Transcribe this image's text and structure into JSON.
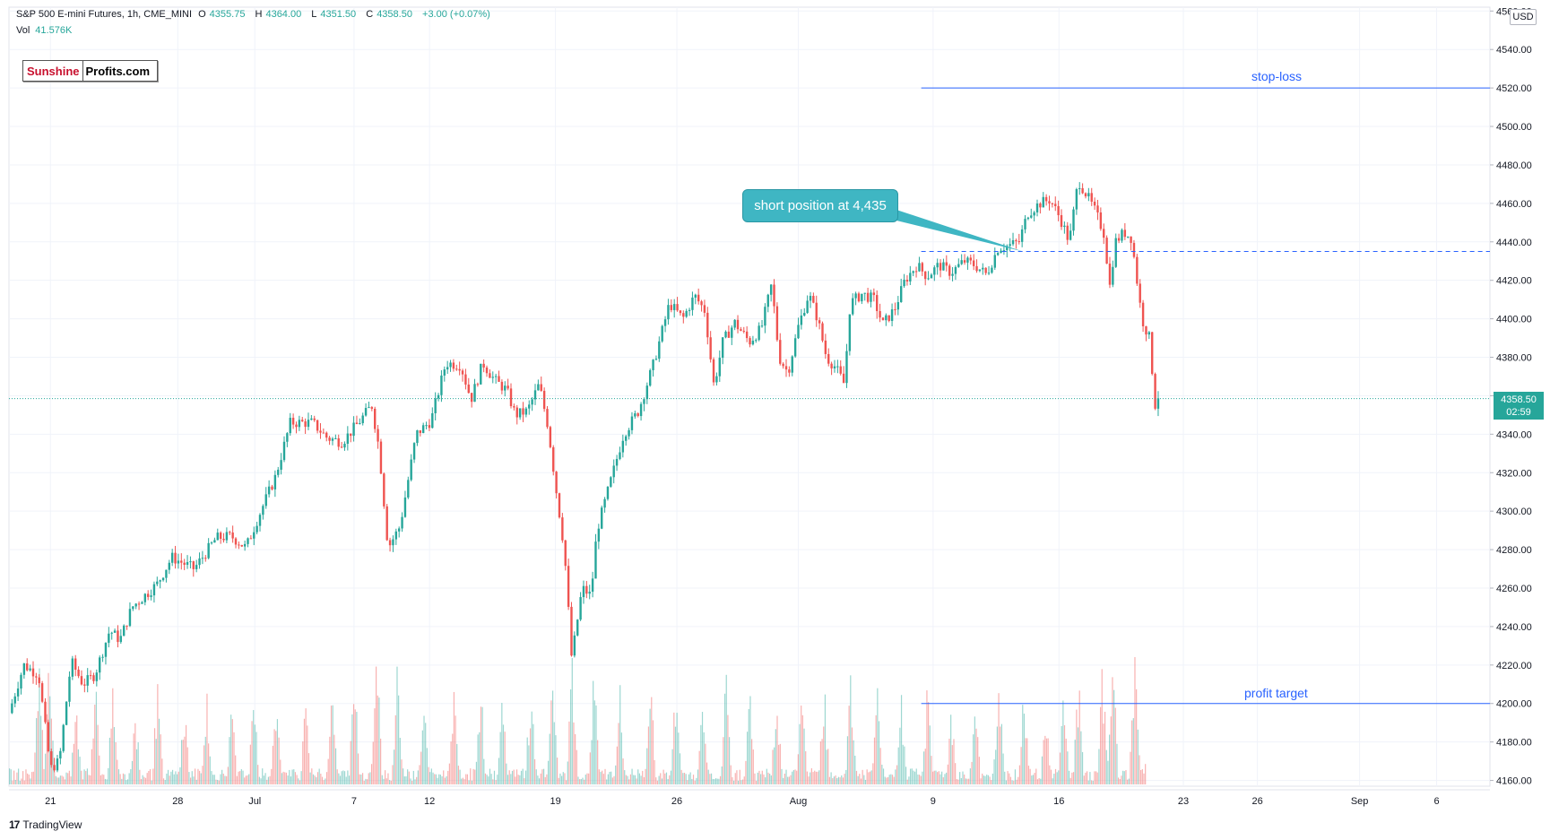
{
  "header": {
    "symbol": "S&P 500 E-mini Futures, 1h, CME_MINI",
    "open_label": "O",
    "open": "4355.75",
    "high_label": "H",
    "high": "4364.00",
    "low_label": "L",
    "low": "4351.50",
    "close_label": "C",
    "close": "4358.50",
    "change": "+3.00 (+0.07%)",
    "vol_label": "Vol",
    "vol_value": "41.576K"
  },
  "logo": {
    "part1": "Sunshine",
    "part2": "Profits.com"
  },
  "currency": "USD",
  "annotations": {
    "callout": "short position at 4,435",
    "stop_loss": "stop-loss",
    "profit_target": "profit target"
  },
  "last_price": {
    "price": "4358.50",
    "countdown": "02:59"
  },
  "footer": {
    "brand": "TradingView"
  },
  "colors": {
    "up": "#26a69a",
    "down": "#ef5350",
    "level": "#2962ff",
    "grid": "#f0f3fa"
  },
  "chart_data": {
    "type": "candlestick",
    "title": "S&P 500 E-mini Futures, 1h, CME_MINI",
    "ylim": [
      4157,
      4562
    ],
    "y_ticks": [
      4160,
      4180,
      4200,
      4220,
      4240,
      4260,
      4280,
      4300,
      4320,
      4340,
      4360,
      4380,
      4400,
      4420,
      4440,
      4460,
      4480,
      4500,
      4520,
      4540,
      4560
    ],
    "x_ticks": [
      "21",
      "28",
      "Jul",
      "7",
      "12",
      "19",
      "26",
      "Aug",
      "9",
      "16",
      "23",
      "26",
      "Sep",
      "6"
    ],
    "x_tick_pos": [
      0.028,
      0.114,
      0.166,
      0.233,
      0.284,
      0.369,
      0.451,
      0.533,
      0.624,
      0.709,
      0.793,
      0.843,
      0.912,
      0.964
    ],
    "price_path": [
      [
        0.0,
        4195
      ],
      [
        0.01,
        4220
      ],
      [
        0.02,
        4215
      ],
      [
        0.028,
        4166
      ],
      [
        0.034,
        4170
      ],
      [
        0.042,
        4222
      ],
      [
        0.05,
        4210
      ],
      [
        0.058,
        4215
      ],
      [
        0.068,
        4238
      ],
      [
        0.075,
        4233
      ],
      [
        0.083,
        4250
      ],
      [
        0.1,
        4262
      ],
      [
        0.11,
        4276
      ],
      [
        0.125,
        4270
      ],
      [
        0.14,
        4286
      ],
      [
        0.15,
        4287
      ],
      [
        0.16,
        4281
      ],
      [
        0.17,
        4300
      ],
      [
        0.18,
        4318
      ],
      [
        0.19,
        4346
      ],
      [
        0.205,
        4346
      ],
      [
        0.215,
        4338
      ],
      [
        0.225,
        4336
      ],
      [
        0.235,
        4345
      ],
      [
        0.245,
        4355
      ],
      [
        0.25,
        4332
      ],
      [
        0.256,
        4281
      ],
      [
        0.264,
        4292
      ],
      [
        0.275,
        4340
      ],
      [
        0.285,
        4347
      ],
      [
        0.295,
        4377
      ],
      [
        0.305,
        4376
      ],
      [
        0.312,
        4358
      ],
      [
        0.32,
        4377
      ],
      [
        0.328,
        4368
      ],
      [
        0.336,
        4363
      ],
      [
        0.342,
        4350
      ],
      [
        0.35,
        4352
      ],
      [
        0.358,
        4366
      ],
      [
        0.364,
        4344
      ],
      [
        0.37,
        4308
      ],
      [
        0.375,
        4280
      ],
      [
        0.38,
        4223
      ],
      [
        0.387,
        4260
      ],
      [
        0.393,
        4256
      ],
      [
        0.397,
        4290
      ],
      [
        0.405,
        4312
      ],
      [
        0.415,
        4340
      ],
      [
        0.425,
        4352
      ],
      [
        0.435,
        4376
      ],
      [
        0.446,
        4408
      ],
      [
        0.455,
        4400
      ],
      [
        0.463,
        4412
      ],
      [
        0.47,
        4404
      ],
      [
        0.476,
        4365
      ],
      [
        0.482,
        4388
      ],
      [
        0.49,
        4398
      ],
      [
        0.5,
        4388
      ],
      [
        0.508,
        4395
      ],
      [
        0.515,
        4418
      ],
      [
        0.52,
        4380
      ],
      [
        0.526,
        4372
      ],
      [
        0.533,
        4396
      ],
      [
        0.54,
        4413
      ],
      [
        0.546,
        4400
      ],
      [
        0.552,
        4380
      ],
      [
        0.558,
        4375
      ],
      [
        0.564,
        4366
      ],
      [
        0.568,
        4408
      ],
      [
        0.576,
        4413
      ],
      [
        0.584,
        4410
      ],
      [
        0.59,
        4397
      ],
      [
        0.598,
        4405
      ],
      [
        0.605,
        4420
      ],
      [
        0.613,
        4428
      ],
      [
        0.62,
        4422
      ],
      [
        0.628,
        4428
      ],
      [
        0.636,
        4424
      ],
      [
        0.645,
        4430
      ],
      [
        0.652,
        4428
      ],
      [
        0.66,
        4423
      ],
      [
        0.668,
        4437
      ],
      [
        0.675,
        4438
      ],
      [
        0.682,
        4440
      ],
      [
        0.688,
        4455
      ],
      [
        0.696,
        4460
      ],
      [
        0.703,
        4462
      ],
      [
        0.71,
        4452
      ],
      [
        0.716,
        4440
      ],
      [
        0.722,
        4472
      ],
      [
        0.728,
        4464
      ],
      [
        0.734,
        4455
      ],
      [
        0.74,
        4443
      ],
      [
        0.743,
        4415
      ],
      [
        0.747,
        4440
      ],
      [
        0.753,
        4445
      ],
      [
        0.758,
        4442
      ],
      [
        0.762,
        4418
      ],
      [
        0.765,
        4400
      ],
      [
        0.77,
        4390
      ],
      [
        0.774,
        4355
      ],
      [
        0.776,
        4360
      ]
    ],
    "last_price": 4358.5,
    "levels": [
      {
        "name": "stop-loss",
        "value": 4520,
        "style": "solid"
      },
      {
        "name": "short position at 4,435",
        "value": 4435,
        "style": "dashed"
      },
      {
        "name": "profit target",
        "value": 4200,
        "style": "solid"
      }
    ],
    "volume_peaks": [
      [
        0.02,
        0.9
      ],
      [
        0.027,
        0.85
      ],
      [
        0.045,
        0.6
      ],
      [
        0.058,
        0.7
      ],
      [
        0.07,
        0.8
      ],
      [
        0.085,
        0.55
      ],
      [
        0.1,
        0.7
      ],
      [
        0.118,
        0.6
      ],
      [
        0.133,
        0.65
      ],
      [
        0.15,
        0.55
      ],
      [
        0.165,
        0.6
      ],
      [
        0.18,
        0.58
      ],
      [
        0.2,
        0.62
      ],
      [
        0.218,
        0.7
      ],
      [
        0.233,
        0.8
      ],
      [
        0.248,
        0.95
      ],
      [
        0.262,
        0.98
      ],
      [
        0.28,
        0.72
      ],
      [
        0.3,
        0.6
      ],
      [
        0.318,
        0.75
      ],
      [
        0.333,
        0.68
      ],
      [
        0.352,
        0.72
      ],
      [
        0.367,
        0.9
      ],
      [
        0.38,
        0.95
      ],
      [
        0.395,
        0.85
      ],
      [
        0.412,
        0.68
      ],
      [
        0.433,
        0.65
      ],
      [
        0.45,
        0.7
      ],
      [
        0.468,
        0.55
      ],
      [
        0.484,
        0.82
      ],
      [
        0.5,
        0.6
      ],
      [
        0.518,
        0.72
      ],
      [
        0.535,
        0.62
      ],
      [
        0.55,
        0.72
      ],
      [
        0.568,
        0.78
      ],
      [
        0.586,
        0.65
      ],
      [
        0.602,
        0.68
      ],
      [
        0.62,
        0.72
      ],
      [
        0.636,
        0.5
      ],
      [
        0.652,
        0.6
      ],
      [
        0.668,
        0.78
      ],
      [
        0.685,
        0.7
      ],
      [
        0.7,
        0.55
      ],
      [
        0.712,
        0.62
      ],
      [
        0.722,
        0.78
      ],
      [
        0.738,
        0.85
      ],
      [
        0.745,
        0.92
      ],
      [
        0.76,
        1.0
      ],
      [
        0.768,
        0.2
      ]
    ]
  }
}
